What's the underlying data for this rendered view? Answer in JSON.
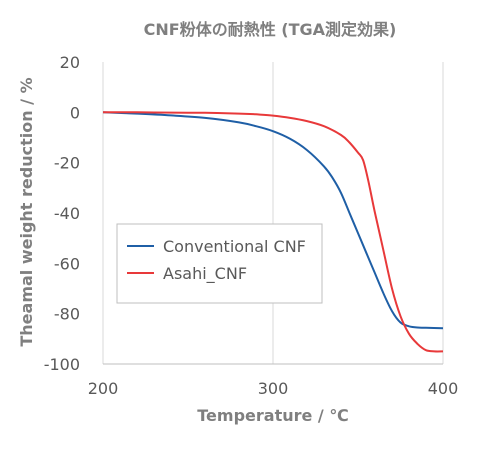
{
  "chart_data": {
    "type": "line",
    "title": "CNF粉体の耐熱性 (TGA測定効果)",
    "xlabel": "Temperature / ℃",
    "ylabel": "Theamal weight reduction / %",
    "xlim": [
      200,
      400
    ],
    "ylim": [
      -100,
      20
    ],
    "xticks": [
      "200",
      "300",
      "400"
    ],
    "yticks": [
      "20",
      "0",
      "-20",
      "-40",
      "-60",
      "-80",
      "-100"
    ],
    "grid": "vertical",
    "legend_position": "center-left",
    "series": [
      {
        "name": "Conventional CNF",
        "color": "#1f5fa6",
        "x": [
          200,
          220,
          240,
          260,
          280,
          290,
          300,
          310,
          320,
          330,
          335,
          340,
          345,
          350,
          355,
          360,
          365,
          370,
          375,
          380,
          385,
          390,
          400
        ],
        "y": [
          0,
          -0.5,
          -1.2,
          -2.2,
          -4,
          -5.5,
          -7.5,
          -10.5,
          -15,
          -21.5,
          -26,
          -32,
          -40,
          -48,
          -56,
          -64,
          -72,
          -79,
          -83.5,
          -85,
          -85.5,
          -85.6,
          -85.8
        ]
      },
      {
        "name": "Asahi_CNF",
        "color": "#e8393a",
        "x": [
          200,
          220,
          240,
          260,
          280,
          290,
          300,
          310,
          320,
          330,
          340,
          345,
          350,
          353,
          356,
          360,
          365,
          370,
          375,
          380,
          385,
          390,
          395,
          400
        ],
        "y": [
          0,
          0,
          -0.1,
          -0.2,
          -0.5,
          -0.8,
          -1.3,
          -2.2,
          -3.5,
          -5.5,
          -9,
          -12,
          -16,
          -19,
          -27,
          -40,
          -55,
          -70,
          -81,
          -88,
          -92,
          -94.5,
          -95,
          -95
        ]
      }
    ]
  }
}
